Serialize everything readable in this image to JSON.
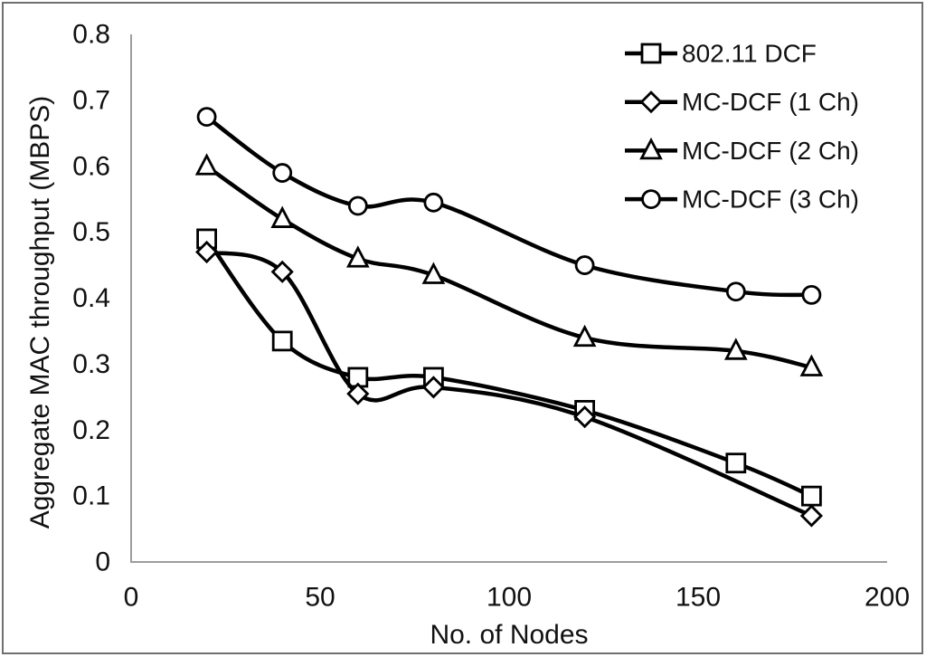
{
  "figure": {
    "background": "#ffffff",
    "frame_color": "#6f6f6f"
  },
  "chart_data": {
    "type": "line",
    "title": "",
    "xlabel": "No. of Nodes",
    "ylabel": "Aggregate MAC throughput (MBPS)",
    "xlim": [
      0,
      200
    ],
    "ylim": [
      0,
      0.8
    ],
    "xticks": [
      0,
      50,
      100,
      150,
      200
    ],
    "xtick_labels": [
      "0",
      "50",
      "100",
      "150",
      "200"
    ],
    "yticks": [
      0,
      0.1,
      0.2,
      0.3,
      0.4,
      0.5,
      0.6,
      0.7,
      0.8
    ],
    "ytick_labels": [
      "0",
      "0.1",
      "0.2",
      "0.3",
      "0.4",
      "0.5",
      "0.6",
      "0.7",
      "0.8"
    ],
    "grid": false,
    "legend_position": "top-right",
    "line_color": "#000000",
    "marker_fill": "#ffffff",
    "axis_color": "#9d9d9d",
    "line_style": "smooth",
    "series": [
      {
        "name": "802.11 DCF",
        "marker": "square",
        "points": [
          [
            20,
            0.49
          ],
          [
            40,
            0.335
          ],
          [
            60,
            0.28
          ],
          [
            80,
            0.28
          ],
          [
            120,
            0.23
          ],
          [
            160,
            0.15
          ],
          [
            180,
            0.1
          ]
        ]
      },
      {
        "name": "MC-DCF (1 Ch)",
        "marker": "diamond",
        "points": [
          [
            20,
            0.47
          ],
          [
            40,
            0.44
          ],
          [
            60,
            0.255
          ],
          [
            80,
            0.265
          ],
          [
            120,
            0.22
          ],
          [
            180,
            0.07
          ]
        ]
      },
      {
        "name": "MC-DCF (2 Ch)",
        "marker": "triangle",
        "points": [
          [
            20,
            0.6
          ],
          [
            40,
            0.52
          ],
          [
            60,
            0.46
          ],
          [
            80,
            0.435
          ],
          [
            120,
            0.34
          ],
          [
            160,
            0.32
          ],
          [
            180,
            0.295
          ]
        ]
      },
      {
        "name": "MC-DCF (3 Ch)",
        "marker": "circle",
        "points": [
          [
            20,
            0.675
          ],
          [
            40,
            0.59
          ],
          [
            60,
            0.54
          ],
          [
            80,
            0.545
          ],
          [
            120,
            0.45
          ],
          [
            160,
            0.41
          ],
          [
            180,
            0.405
          ]
        ]
      }
    ]
  }
}
